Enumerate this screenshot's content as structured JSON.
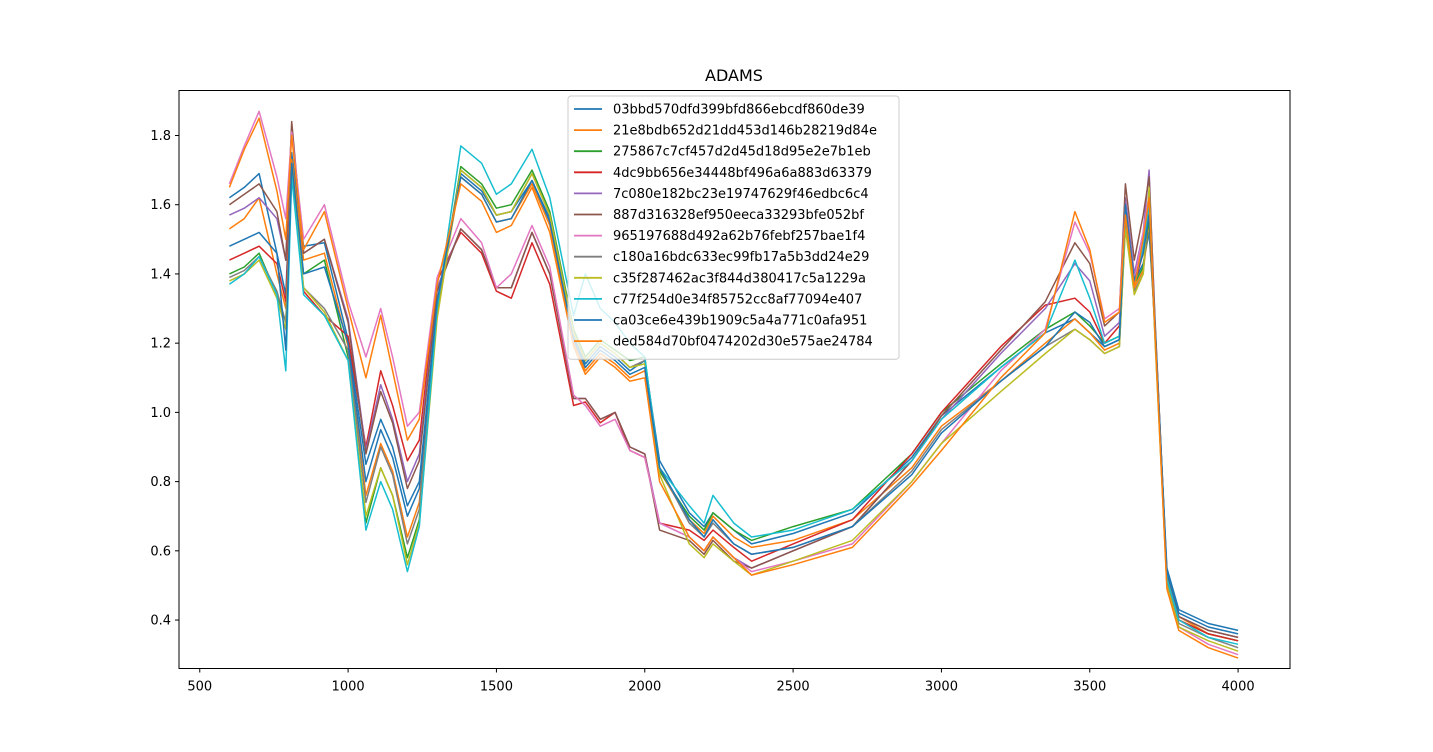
{
  "chart_data": {
    "type": "line",
    "title": "ADAMS",
    "xlabel": "",
    "ylabel": "",
    "xlim": [
      430,
      4175
    ],
    "ylim": [
      0.26,
      1.93
    ],
    "xticks": [
      500,
      1000,
      1500,
      2000,
      2500,
      3000,
      3500,
      4000
    ],
    "yticks": [
      0.4,
      0.6,
      0.8,
      1.0,
      1.2,
      1.4,
      1.6,
      1.8
    ],
    "xtick_labels": [
      "500",
      "1000",
      "1500",
      "2000",
      "2500",
      "3000",
      "3500",
      "4000"
    ],
    "ytick_labels": [
      "0.4",
      "0.6",
      "0.8",
      "1.0",
      "1.2",
      "1.4",
      "1.6",
      "1.8"
    ],
    "grid": false,
    "legend": "upper-center",
    "colors": [
      "#1f77b4",
      "#ff7f0e",
      "#2ca02c",
      "#d62728",
      "#9467bd",
      "#8c564b",
      "#e377c2",
      "#7f7f7f",
      "#bcbd22",
      "#17becf",
      "#1f77b4",
      "#ff7f0e"
    ],
    "x": [
      600,
      650,
      700,
      760,
      790,
      810,
      850,
      920,
      1000,
      1060,
      1110,
      1150,
      1200,
      1240,
      1300,
      1380,
      1450,
      1500,
      1550,
      1620,
      1680,
      1760,
      1800,
      1850,
      1900,
      1950,
      2000,
      2050,
      2150,
      2200,
      2230,
      2300,
      2360,
      2500,
      2700,
      2900,
      3000,
      3200,
      3350,
      3450,
      3500,
      3550,
      3600,
      3620,
      3650,
      3680,
      3700,
      3720,
      3760,
      3800,
      3900,
      4000
    ],
    "series": [
      {
        "name": "03bbd570dfd399bfd866ebcdf860de39",
        "values": [
          1.62,
          1.65,
          1.69,
          1.46,
          1.34,
          1.75,
          1.48,
          1.49,
          1.21,
          0.85,
          0.98,
          0.9,
          0.73,
          0.8,
          1.32,
          1.69,
          1.64,
          1.57,
          1.58,
          1.67,
          1.56,
          1.22,
          1.14,
          1.19,
          1.16,
          1.12,
          1.15,
          0.86,
          0.71,
          0.67,
          0.71,
          0.66,
          0.62,
          0.65,
          0.71,
          0.87,
          0.99,
          1.13,
          1.23,
          1.27,
          1.23,
          1.19,
          1.21,
          1.55,
          1.38,
          1.43,
          1.52,
          1.25,
          0.55,
          0.43,
          0.39,
          0.37
        ]
      },
      {
        "name": "21e8bdb652d21dd453d146b28219d84e",
        "values": [
          1.53,
          1.56,
          1.62,
          1.4,
          1.3,
          1.73,
          1.44,
          1.46,
          1.19,
          0.76,
          0.91,
          0.83,
          0.64,
          0.74,
          1.3,
          1.68,
          1.63,
          1.55,
          1.56,
          1.66,
          1.54,
          1.2,
          1.12,
          1.17,
          1.14,
          1.1,
          1.12,
          0.83,
          0.69,
          0.65,
          0.7,
          0.64,
          0.61,
          0.63,
          0.69,
          0.84,
          0.96,
          1.09,
          1.2,
          1.27,
          1.23,
          1.18,
          1.2,
          1.58,
          1.36,
          1.41,
          1.55,
          1.23,
          0.53,
          0.41,
          0.36,
          0.34
        ]
      },
      {
        "name": "275867c7cf457d2d45d18d95e2e7b1eb",
        "values": [
          1.4,
          1.42,
          1.46,
          1.34,
          1.26,
          1.7,
          1.4,
          1.44,
          1.16,
          0.68,
          0.84,
          0.76,
          0.58,
          0.69,
          1.29,
          1.71,
          1.66,
          1.59,
          1.6,
          1.7,
          1.58,
          1.24,
          1.16,
          1.21,
          1.18,
          1.15,
          1.16,
          0.83,
          0.7,
          0.66,
          0.71,
          0.66,
          0.63,
          0.67,
          0.72,
          0.88,
          1.0,
          1.14,
          1.24,
          1.29,
          1.25,
          1.2,
          1.22,
          1.57,
          1.37,
          1.42,
          1.56,
          1.24,
          0.52,
          0.4,
          0.36,
          0.34
        ]
      },
      {
        "name": "4dc9bb656e34448bf496a6a883d63379",
        "values": [
          1.44,
          1.46,
          1.48,
          1.43,
          1.32,
          1.7,
          1.35,
          1.28,
          1.22,
          0.9,
          1.12,
          1.02,
          0.86,
          0.92,
          1.38,
          1.52,
          1.46,
          1.35,
          1.33,
          1.49,
          1.37,
          1.02,
          1.03,
          0.97,
          1.0,
          0.89,
          0.87,
          0.68,
          0.66,
          0.63,
          0.66,
          0.61,
          0.57,
          0.62,
          0.69,
          0.88,
          1.0,
          1.19,
          1.31,
          1.33,
          1.29,
          1.2,
          1.25,
          1.59,
          1.37,
          1.46,
          1.58,
          1.25,
          0.52,
          0.4,
          0.36,
          0.34
        ]
      },
      {
        "name": "7c080e182bc23e19747629f46edbc6c4",
        "values": [
          1.57,
          1.59,
          1.62,
          1.56,
          1.44,
          1.82,
          1.46,
          1.5,
          1.27,
          0.89,
          1.08,
          0.98,
          0.8,
          0.88,
          1.36,
          1.53,
          1.47,
          1.36,
          1.36,
          1.52,
          1.4,
          1.04,
          1.04,
          0.98,
          1.0,
          0.9,
          0.88,
          0.68,
          0.64,
          0.6,
          0.64,
          0.58,
          0.55,
          0.6,
          0.67,
          0.86,
          0.98,
          1.17,
          1.3,
          1.43,
          1.38,
          1.22,
          1.26,
          1.62,
          1.4,
          1.52,
          1.7,
          1.26,
          0.53,
          0.41,
          0.37,
          0.35
        ]
      },
      {
        "name": "887d316328ef950eeca33293bfe052bf",
        "values": [
          1.6,
          1.63,
          1.66,
          1.58,
          1.44,
          1.84,
          1.46,
          1.5,
          1.26,
          0.88,
          1.06,
          0.97,
          0.78,
          0.86,
          1.35,
          1.53,
          1.47,
          1.36,
          1.36,
          1.52,
          1.4,
          1.04,
          1.04,
          0.98,
          1.0,
          0.9,
          0.88,
          0.66,
          0.63,
          0.59,
          0.63,
          0.57,
          0.55,
          0.6,
          0.67,
          0.86,
          0.99,
          1.18,
          1.32,
          1.49,
          1.43,
          1.25,
          1.29,
          1.66,
          1.44,
          1.57,
          1.68,
          1.27,
          0.53,
          0.41,
          0.37,
          0.35
        ]
      },
      {
        "name": "965197688d492a62b76febf257bae1f4",
        "values": [
          1.66,
          1.77,
          1.87,
          1.68,
          1.56,
          1.81,
          1.5,
          1.6,
          1.32,
          1.16,
          1.3,
          1.16,
          0.96,
          1.0,
          1.39,
          1.56,
          1.49,
          1.36,
          1.4,
          1.54,
          1.42,
          1.05,
          1.02,
          0.96,
          0.98,
          0.89,
          0.87,
          0.68,
          0.64,
          0.6,
          0.64,
          0.58,
          0.54,
          0.57,
          0.62,
          0.8,
          0.91,
          1.12,
          1.24,
          1.55,
          1.46,
          1.27,
          1.3,
          1.6,
          1.38,
          1.52,
          1.63,
          1.24,
          0.5,
          0.38,
          0.33,
          0.3
        ]
      },
      {
        "name": "c180a16bdc633ec99fb17a5b3dd24e29",
        "values": [
          1.39,
          1.41,
          1.45,
          1.35,
          1.26,
          1.7,
          1.36,
          1.3,
          1.18,
          0.74,
          0.9,
          0.82,
          0.62,
          0.72,
          1.3,
          1.7,
          1.65,
          1.57,
          1.58,
          1.69,
          1.57,
          1.23,
          1.15,
          1.2,
          1.17,
          1.13,
          1.15,
          0.84,
          0.68,
          0.64,
          0.68,
          0.62,
          0.59,
          0.61,
          0.67,
          0.83,
          0.95,
          1.09,
          1.19,
          1.24,
          1.21,
          1.17,
          1.19,
          1.54,
          1.35,
          1.4,
          1.6,
          1.22,
          0.51,
          0.39,
          0.35,
          0.32
        ]
      },
      {
        "name": "c35f287462ac3f844d380417c5a1229a",
        "values": [
          1.38,
          1.4,
          1.44,
          1.33,
          1.24,
          1.69,
          1.36,
          1.29,
          1.15,
          0.7,
          0.84,
          0.76,
          0.56,
          0.68,
          1.27,
          1.7,
          1.65,
          1.57,
          1.58,
          1.69,
          1.57,
          1.23,
          1.15,
          1.2,
          1.17,
          1.13,
          1.14,
          0.82,
          0.62,
          0.58,
          0.62,
          0.57,
          0.53,
          0.57,
          0.63,
          0.8,
          0.91,
          1.06,
          1.17,
          1.24,
          1.21,
          1.17,
          1.19,
          1.53,
          1.34,
          1.4,
          1.65,
          1.21,
          0.5,
          0.38,
          0.34,
          0.31
        ]
      },
      {
        "name": "c77f254d0e34f85752cc8af77094e407",
        "values": [
          1.37,
          1.4,
          1.45,
          1.34,
          1.12,
          1.68,
          1.34,
          1.28,
          1.15,
          0.66,
          0.8,
          0.72,
          0.54,
          0.67,
          1.3,
          1.77,
          1.72,
          1.63,
          1.66,
          1.76,
          1.62,
          1.28,
          1.4,
          1.3,
          1.26,
          1.2,
          1.16,
          0.84,
          0.73,
          0.68,
          0.76,
          0.68,
          0.64,
          0.66,
          0.72,
          0.86,
          0.98,
          1.13,
          1.23,
          1.44,
          1.33,
          1.2,
          1.22,
          1.57,
          1.37,
          1.48,
          1.6,
          1.24,
          0.52,
          0.4,
          0.35,
          0.33
        ]
      },
      {
        "name": "ca03ce6e439b1909c5a4a771c0afa951",
        "values": [
          1.48,
          1.5,
          1.52,
          1.46,
          1.18,
          1.72,
          1.4,
          1.42,
          1.2,
          0.8,
          0.95,
          0.87,
          0.7,
          0.78,
          1.32,
          1.68,
          1.63,
          1.55,
          1.56,
          1.67,
          1.55,
          1.21,
          1.13,
          1.18,
          1.15,
          1.11,
          1.13,
          0.84,
          0.69,
          0.64,
          0.69,
          0.62,
          0.59,
          0.61,
          0.67,
          0.82,
          0.94,
          1.09,
          1.19,
          1.29,
          1.26,
          1.19,
          1.21,
          1.6,
          1.38,
          1.46,
          1.57,
          1.25,
          0.54,
          0.42,
          0.38,
          0.36
        ]
      },
      {
        "name": "ded584d70bf0474202d30e575ae24784",
        "values": [
          1.65,
          1.76,
          1.85,
          1.64,
          1.5,
          1.8,
          1.47,
          1.58,
          1.3,
          1.1,
          1.28,
          1.12,
          0.92,
          0.98,
          1.37,
          1.66,
          1.61,
          1.52,
          1.54,
          1.65,
          1.52,
          1.19,
          1.11,
          1.16,
          1.13,
          1.09,
          1.1,
          0.8,
          0.64,
          0.6,
          0.64,
          0.58,
          0.53,
          0.56,
          0.61,
          0.79,
          0.89,
          1.1,
          1.23,
          1.58,
          1.47,
          1.26,
          1.29,
          1.57,
          1.36,
          1.5,
          1.62,
          1.23,
          0.49,
          0.37,
          0.32,
          0.29
        ]
      }
    ]
  }
}
